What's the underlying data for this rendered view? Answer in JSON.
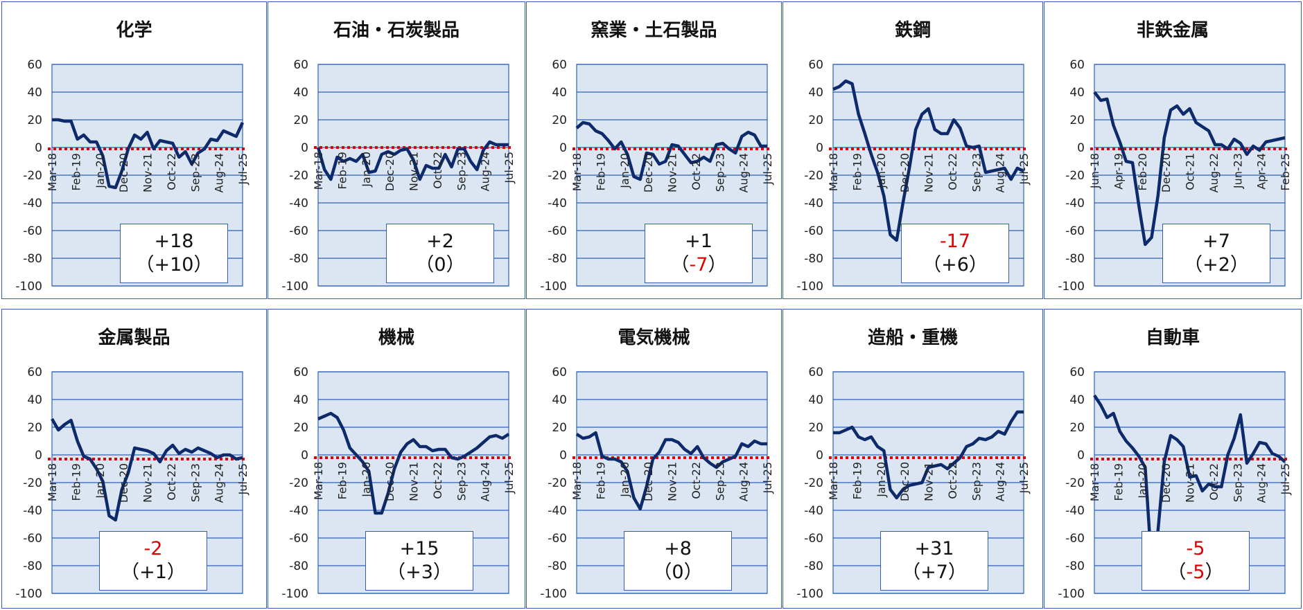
{
  "y_ticks": [
    "60",
    "40",
    "20",
    "0",
    "-20",
    "-40",
    "-60",
    "-80",
    "-100"
  ],
  "colors": {
    "line": "#0d2a6b",
    "plot_bg": "#dce6f2",
    "grid": "#2f5fb5",
    "zero_line": "#e00000",
    "negative_text": "#e00000"
  },
  "panels": [
    {
      "title": "化学",
      "value": "+18",
      "change": "+10",
      "chart_data": {
        "type": "line",
        "ylim": [
          -100,
          60
        ],
        "zero_line": -1,
        "xticks": [
          "Mar-18",
          "Feb-19",
          "Jan-20",
          "Dec-20",
          "Nov-21",
          "Oct-22",
          "Sep-23",
          "Aug-24",
          "Jul-25"
        ],
        "x": [
          0,
          1,
          2,
          3,
          4,
          5,
          6,
          7,
          8,
          9,
          10,
          11,
          12,
          13,
          14,
          15,
          16,
          17,
          18,
          19,
          20,
          21,
          22,
          23,
          24,
          25,
          26,
          27,
          28,
          29,
          30
        ],
        "values": [
          20,
          20,
          19,
          19,
          6,
          9,
          4,
          4,
          -6,
          -28,
          -29,
          -17,
          -1,
          9,
          6,
          11,
          -1,
          5,
          4,
          3,
          -7,
          -3,
          -12,
          -4,
          -1,
          6,
          5,
          12,
          10,
          8,
          18
        ]
      }
    },
    {
      "title": "石油・石炭製品",
      "value": "+2",
      "change": "0",
      "chart_data": {
        "type": "line",
        "ylim": [
          -100,
          60
        ],
        "zero_line": 0,
        "xticks": [
          "Mar-18",
          "Feb-19",
          "Jan-20",
          "Dec-20",
          "Nov-21",
          "Oct-22",
          "Sep-23",
          "Aug-24",
          "Jul-25"
        ],
        "x": [
          0,
          1,
          2,
          3,
          4,
          5,
          6,
          7,
          8,
          9,
          10,
          11,
          12,
          13,
          14,
          15,
          16,
          17,
          18,
          19,
          20,
          21,
          22,
          23,
          24,
          25,
          26,
          27,
          28,
          29,
          30
        ],
        "values": [
          0,
          -16,
          -23,
          -7,
          -10,
          -8,
          -10,
          -5,
          -18,
          -17,
          -5,
          -3,
          -5,
          -2,
          -1,
          -9,
          -23,
          -13,
          -15,
          -15,
          -5,
          -14,
          -1,
          -1,
          -10,
          -16,
          -2,
          4,
          2,
          2,
          2
        ]
      }
    },
    {
      "title": "窯業・土石製品",
      "value": "+1",
      "change": "-7",
      "chart_data": {
        "type": "line",
        "ylim": [
          -100,
          60
        ],
        "zero_line": -1,
        "xticks": [
          "Mar-18",
          "Feb-19",
          "Jan-20",
          "Dec-20",
          "Nov-21",
          "Oct-22",
          "Sep-23",
          "Aug-24",
          "Jul-25"
        ],
        "x": [
          0,
          1,
          2,
          3,
          4,
          5,
          6,
          7,
          8,
          9,
          10,
          11,
          12,
          13,
          14,
          15,
          16,
          17,
          18,
          19,
          20,
          21,
          22,
          23,
          24,
          25,
          26,
          27,
          28,
          29,
          30
        ],
        "values": [
          14,
          18,
          17,
          12,
          10,
          5,
          -1,
          4,
          -5,
          -21,
          -23,
          -4,
          -5,
          -12,
          -10,
          2,
          1,
          -5,
          -11,
          -10,
          -7,
          -10,
          2,
          3,
          -1,
          -4,
          8,
          11,
          9,
          1,
          1
        ]
      }
    },
    {
      "title": "鉄鋼",
      "value": "-17",
      "change": "+6",
      "chart_data": {
        "type": "line",
        "ylim": [
          -100,
          60
        ],
        "zero_line": -1,
        "xticks": [
          "Mar-18",
          "Feb-19",
          "Jan-20",
          "Dec-20",
          "Nov-21",
          "Oct-22",
          "Sep-23",
          "Aug-24",
          "Jul-25"
        ],
        "x": [
          0,
          1,
          2,
          3,
          4,
          5,
          6,
          7,
          8,
          9,
          10,
          11,
          12,
          13,
          14,
          15,
          16,
          17,
          18,
          19,
          20,
          21,
          22,
          23,
          24,
          25,
          26,
          27,
          28,
          29,
          30
        ],
        "values": [
          42,
          44,
          48,
          46,
          24,
          10,
          -5,
          -18,
          -35,
          -63,
          -67,
          -40,
          -15,
          13,
          24,
          28,
          13,
          10,
          10,
          20,
          14,
          1,
          0,
          1,
          -18,
          -17,
          -16,
          -15,
          -23,
          -15,
          -17
        ]
      }
    },
    {
      "title": "非鉄金属",
      "value": "+7",
      "change": "+2",
      "chart_data": {
        "type": "line",
        "ylim": [
          -100,
          60
        ],
        "zero_line": -1,
        "xticks": [
          "Jun-18",
          "Apr-19",
          "Feb-20",
          "Dec-20",
          "Oct-21",
          "Aug-22",
          "Jun-23",
          "Apr-24",
          "Feb-25"
        ],
        "x": [
          0,
          1,
          2,
          3,
          4,
          5,
          6,
          7,
          8,
          9,
          10,
          11,
          12,
          13,
          14,
          15,
          16,
          17,
          18,
          19,
          20,
          21,
          22,
          23,
          24,
          25,
          26,
          27,
          28,
          29,
          30
        ],
        "values": [
          40,
          34,
          35,
          16,
          4,
          -10,
          -11,
          -42,
          -70,
          -65,
          -35,
          7,
          27,
          30,
          24,
          28,
          18,
          15,
          12,
          2,
          2,
          -1,
          6,
          3,
          -5,
          1,
          -2,
          4,
          5,
          6,
          7
        ]
      }
    },
    {
      "title": "金属製品",
      "value": "-2",
      "change": "+1",
      "chart_data": {
        "type": "line",
        "ylim": [
          -100,
          60
        ],
        "zero_line": -3,
        "xticks": [
          "Mar-18",
          "Feb-19",
          "Jan-20",
          "Dec-20",
          "Nov-21",
          "Oct-22",
          "Sep-23",
          "Aug-24",
          "Jul-25"
        ],
        "x": [
          0,
          1,
          2,
          3,
          4,
          5,
          6,
          7,
          8,
          9,
          10,
          11,
          12,
          13,
          14,
          15,
          16,
          17,
          18,
          19,
          20,
          21,
          22,
          23,
          24,
          25,
          26,
          27,
          28,
          29,
          30
        ],
        "values": [
          26,
          18,
          22,
          25,
          10,
          -1,
          -3,
          -10,
          -19,
          -44,
          -47,
          -25,
          -13,
          5,
          4,
          3,
          1,
          -5,
          3,
          7,
          1,
          4,
          2,
          5,
          3,
          1,
          -2,
          0,
          0,
          -3,
          -2
        ]
      }
    },
    {
      "title": "機械",
      "value": "+15",
      "change": "+3",
      "chart_data": {
        "type": "line",
        "ylim": [
          -100,
          60
        ],
        "zero_line": -2,
        "xticks": [
          "Mar-18",
          "Feb-19",
          "Jan-20",
          "Dec-20",
          "Nov-21",
          "Oct-22",
          "Sep-23",
          "Aug-24",
          "Jul-25"
        ],
        "x": [
          0,
          1,
          2,
          3,
          4,
          5,
          6,
          7,
          8,
          9,
          10,
          11,
          12,
          13,
          14,
          15,
          16,
          17,
          18,
          19,
          20,
          21,
          22,
          23,
          24,
          25,
          26,
          27,
          28,
          29,
          30
        ],
        "values": [
          26,
          28,
          30,
          27,
          18,
          5,
          0,
          -5,
          -12,
          -42,
          -42,
          -28,
          -10,
          2,
          8,
          11,
          6,
          6,
          3,
          4,
          4,
          -2,
          -3,
          -1,
          2,
          5,
          9,
          13,
          14,
          12,
          15
        ]
      }
    },
    {
      "title": "電気機械",
      "value": "+8",
      "change": "0",
      "chart_data": {
        "type": "line",
        "ylim": [
          -100,
          60
        ],
        "zero_line": -2,
        "xticks": [
          "Mar-18",
          "Feb-19",
          "Jan-20",
          "Dec-20",
          "Nov-21",
          "Oct-22",
          "Sep-23",
          "Aug-24",
          "Jul-25"
        ],
        "x": [
          0,
          1,
          2,
          3,
          4,
          5,
          6,
          7,
          8,
          9,
          10,
          11,
          12,
          13,
          14,
          15,
          16,
          17,
          18,
          19,
          20,
          21,
          22,
          23,
          24,
          25,
          26,
          27,
          28,
          29,
          30
        ],
        "values": [
          15,
          12,
          13,
          16,
          -1,
          -3,
          -3,
          -5,
          -12,
          -31,
          -39,
          -23,
          -3,
          2,
          11,
          11,
          9,
          4,
          1,
          6,
          -2,
          -6,
          -9,
          -5,
          -3,
          -1,
          8,
          6,
          10,
          8,
          8
        ]
      }
    },
    {
      "title": "造船・重機",
      "value": "+31",
      "change": "+7",
      "chart_data": {
        "type": "line",
        "ylim": [
          -100,
          60
        ],
        "zero_line": -2,
        "xticks": [
          "Mar-18",
          "Feb-19",
          "Jan-20",
          "Dec-20",
          "Nov-21",
          "Oct-22",
          "Sep-23",
          "Aug-24",
          "Jul-25"
        ],
        "x": [
          0,
          1,
          2,
          3,
          4,
          5,
          6,
          7,
          8,
          9,
          10,
          11,
          12,
          13,
          14,
          15,
          16,
          17,
          18,
          19,
          20,
          21,
          22,
          23,
          24,
          25,
          26,
          27,
          28,
          29,
          30
        ],
        "values": [
          16,
          16,
          18,
          20,
          13,
          11,
          13,
          6,
          3,
          -25,
          -31,
          -25,
          -22,
          -21,
          -20,
          -9,
          -8,
          -7,
          -10,
          -6,
          -2,
          6,
          8,
          12,
          11,
          13,
          17,
          15,
          24,
          31,
          31
        ]
      }
    },
    {
      "title": "自動車",
      "value": "-5",
      "change": "-5",
      "chart_data": {
        "type": "line",
        "ylim": [
          -100,
          60
        ],
        "zero_line": -3,
        "xticks": [
          "Mar-18",
          "Feb-19",
          "Jan-20",
          "Dec-20",
          "Nov-21",
          "Oct-22",
          "Sep-23",
          "Aug-24",
          "Jul-25"
        ],
        "x": [
          0,
          1,
          2,
          3,
          4,
          5,
          6,
          7,
          8,
          9,
          10,
          11,
          12,
          13,
          14,
          15,
          16,
          17,
          18,
          19,
          20,
          21,
          22,
          23,
          24,
          25,
          26,
          27,
          28,
          29,
          30
        ],
        "values": [
          43,
          36,
          27,
          30,
          17,
          10,
          5,
          -1,
          -9,
          -79,
          -55,
          -5,
          14,
          11,
          6,
          -16,
          -15,
          -26,
          -21,
          -23,
          -23,
          0,
          12,
          29,
          -6,
          1,
          9,
          8,
          1,
          -1,
          -5
        ]
      }
    }
  ]
}
